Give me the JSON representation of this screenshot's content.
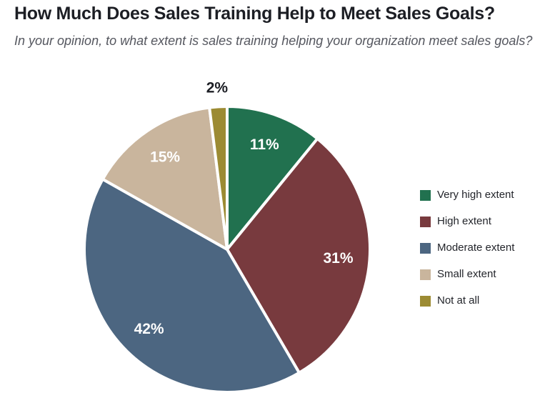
{
  "page": {
    "title": "How Much Does Sales Training Help to Meet Sales Goals?",
    "subtitle": "In your opinion, to what extent is sales training helping your organization meet sales goals?"
  },
  "chart_data": {
    "type": "pie",
    "title": "How Much Does Sales Training Help to Meet Sales Goals?",
    "subtitle": "In your opinion, to what extent is sales training helping your organization meet sales goals?",
    "categories": [
      "Very high extent",
      "High extent",
      "Moderate extent",
      "Small extent",
      "Not at all"
    ],
    "values": [
      11,
      31,
      42,
      15,
      2
    ],
    "unit": "%",
    "slice_labels": [
      "11%",
      "31%",
      "42%",
      "15%",
      "2%"
    ],
    "colors": [
      "#21714F",
      "#783A3E",
      "#4C6681",
      "#C9B59D",
      "#9C8B33"
    ],
    "start_angle_deg": 0,
    "direction": "clockwise",
    "legend_position": "right",
    "separator_color": "#FFFFFF",
    "label_style": {
      "inside_color": "#FFFFFF",
      "outside_color": "#1C1E24",
      "outside_threshold_pct": 5
    },
    "text_colors": {
      "title": "#1C1E24",
      "subtitle": "#55575F",
      "legend": "#23252B"
    }
  }
}
